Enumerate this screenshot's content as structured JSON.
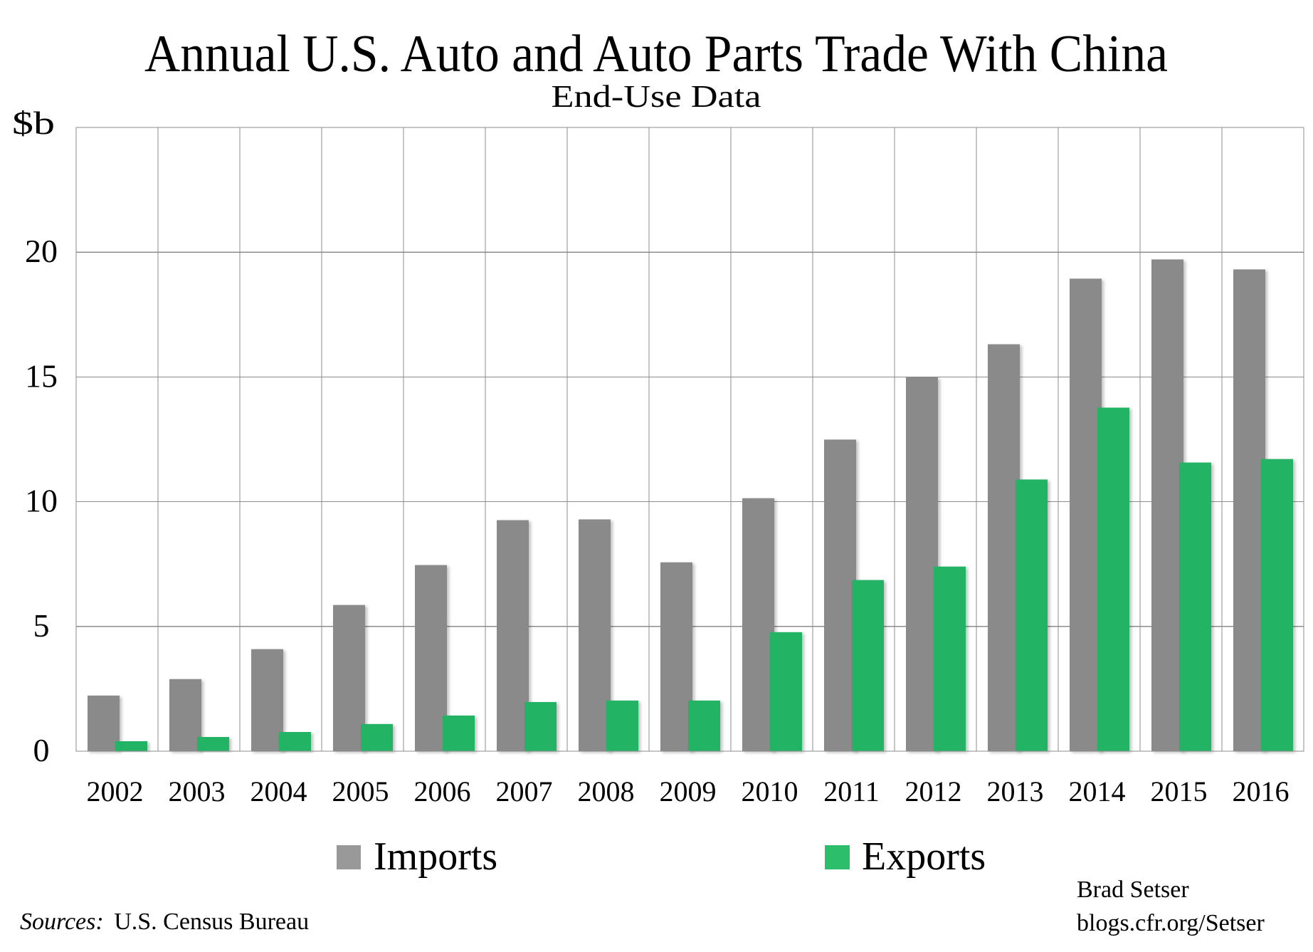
{
  "chart_data": {
    "type": "bar",
    "title": "Annual U.S. Auto and Auto Parts Trade With China",
    "subtitle": "End-Use Data",
    "xlabel": "",
    "ylabel": "$b",
    "ylim": [
      0,
      25
    ],
    "yticks": [
      0,
      5,
      10,
      15,
      20
    ],
    "ytick_labels": [
      "0",
      "5",
      "10",
      "15",
      "20"
    ],
    "grid": true,
    "categories": [
      "2002",
      "2003",
      "2004",
      "2005",
      "2006",
      "2007",
      "2008",
      "2009",
      "2010",
      "2011",
      "2012",
      "2013",
      "2014",
      "2015",
      "2016"
    ],
    "series": [
      {
        "name": "Imports",
        "color": "#8a8a8a",
        "values": [
          2.23,
          2.89,
          4.09,
          5.86,
          7.46,
          9.26,
          9.29,
          7.57,
          10.14,
          12.49,
          14.99,
          16.31,
          18.94,
          19.71,
          19.31
        ]
      },
      {
        "name": "Exports",
        "color": "#23b365",
        "values": [
          0.4,
          0.57,
          0.77,
          1.09,
          1.43,
          1.97,
          2.03,
          2.03,
          4.77,
          6.86,
          7.4,
          10.89,
          13.77,
          11.57,
          11.71
        ]
      }
    ],
    "legend": {
      "placement": "bottom-center",
      "items": [
        {
          "label": "Imports",
          "color": "#999999"
        },
        {
          "label": "Exports",
          "color": "#2dbe6c"
        }
      ]
    },
    "source_prefix": "Sources:",
    "source_text": "U.S. Census Bureau",
    "credit_name": "Brad Setser",
    "credit_url": "blogs.cfr.org/Setser"
  }
}
